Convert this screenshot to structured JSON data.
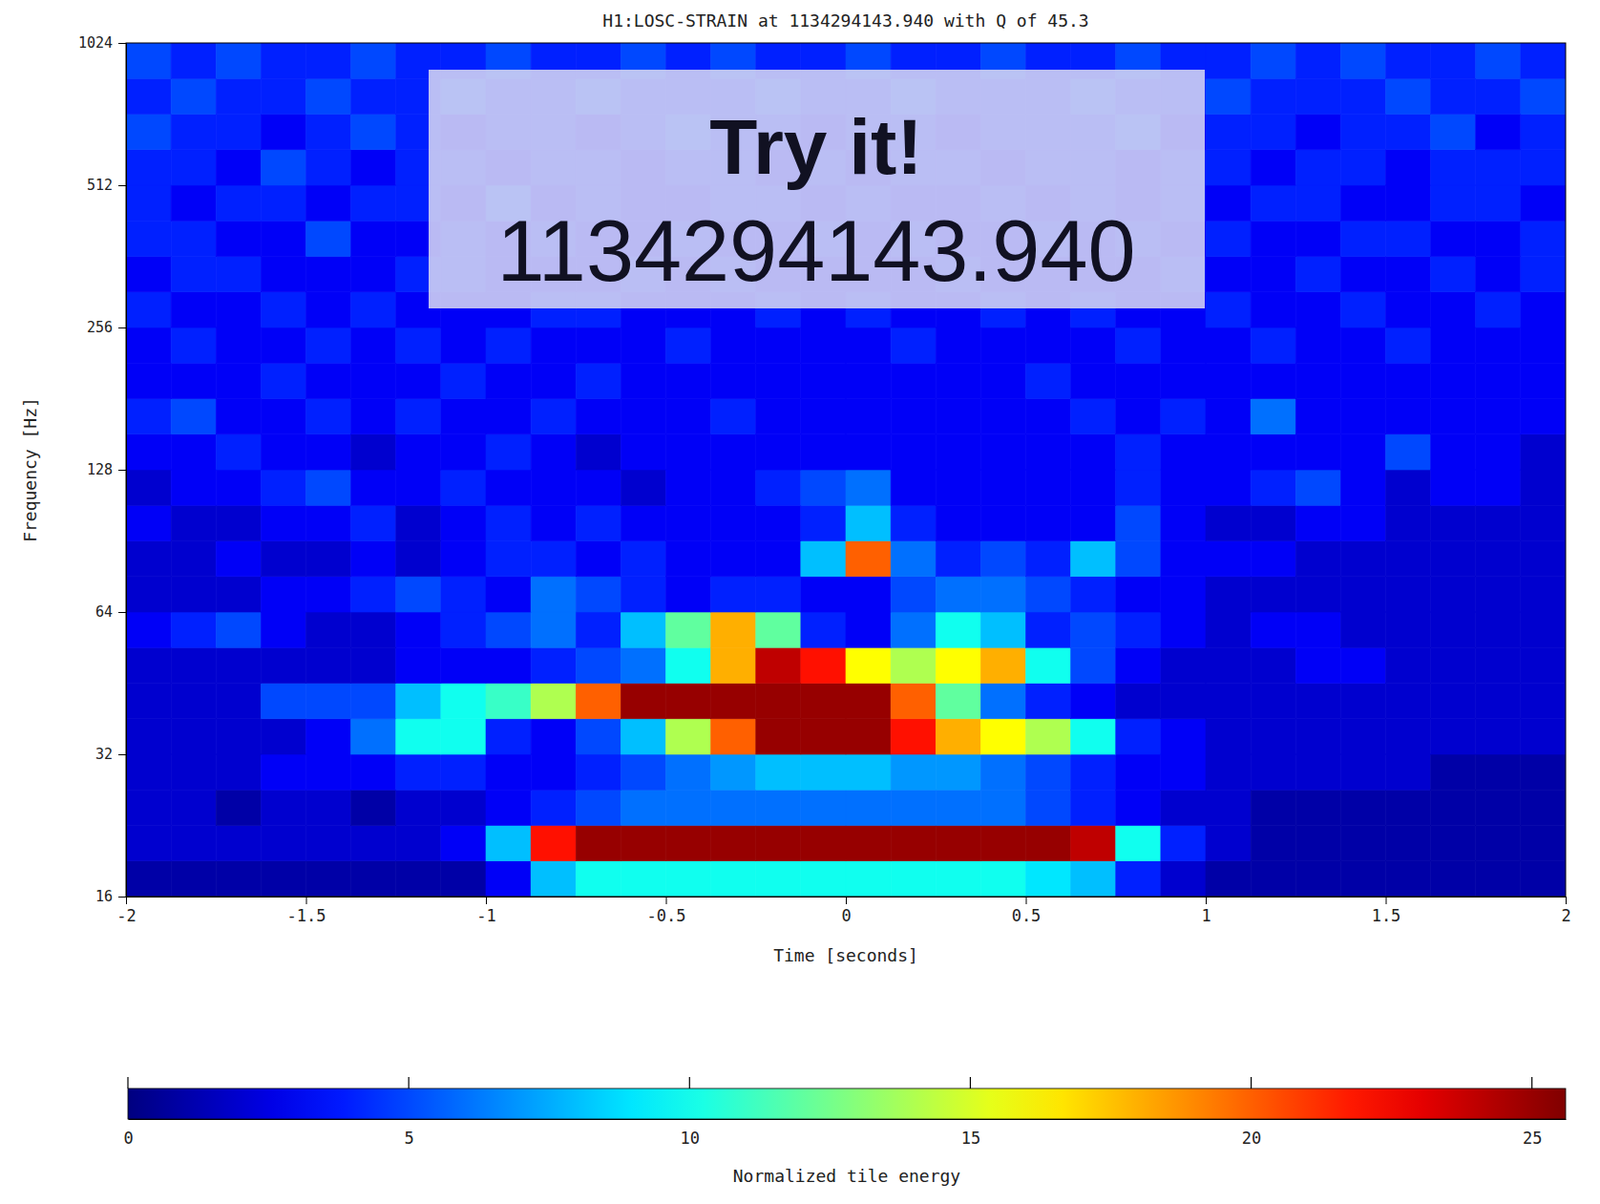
{
  "chart_data": {
    "type": "heatmap",
    "title": "H1:LOSC-STRAIN at 1134294143.940 with Q of 45.3",
    "xlabel": "Time [seconds]",
    "ylabel": "Frequency [Hz]",
    "log": "y",
    "xlim": [
      -2,
      2
    ],
    "xticks": [
      -2,
      -1.5,
      -1,
      -0.5,
      0,
      0.5,
      1,
      1.5,
      2
    ],
    "ylim": [
      16,
      1024
    ],
    "yticks": [
      16,
      32,
      64,
      128,
      256,
      512,
      1024
    ],
    "annotations": [
      "Try it!",
      "1134294143.940"
    ],
    "x_bins": [
      -2,
      -1.875,
      -1.75,
      -1.625,
      -1.5,
      -1.375,
      -1.25,
      -1.125,
      -1,
      -0.875,
      -0.75,
      -0.625,
      -0.5,
      -0.375,
      -0.25,
      -0.125,
      0,
      0.125,
      0.25,
      0.375,
      0.5,
      0.625,
      0.75,
      0.875,
      1,
      1.125,
      1.25,
      1.375,
      1.5,
      1.625,
      1.75,
      1.875,
      2
    ],
    "y_bins": [
      16,
      19.03,
      22.63,
      26.91,
      32,
      38.05,
      45.25,
      53.82,
      64,
      76.11,
      90.51,
      107.63,
      128,
      152.22,
      181.02,
      215.27,
      256,
      304.44,
      362.04,
      430.54,
      512,
      608.87,
      724.08,
      861.08,
      1024
    ],
    "values": [
      [
        1,
        1,
        1,
        1,
        1,
        1,
        1,
        1,
        3,
        8,
        10,
        10,
        10,
        10,
        10,
        10,
        10,
        10,
        10,
        10,
        9,
        8,
        4,
        2,
        1,
        1,
        1,
        1,
        1,
        1,
        1,
        1
      ],
      [
        2,
        2,
        2,
        2,
        2,
        2,
        2,
        3,
        8,
        22,
        25,
        25,
        25,
        25,
        25,
        25,
        25,
        25,
        25,
        25,
        25,
        24,
        10,
        4,
        2,
        1,
        1,
        1,
        1,
        1,
        1,
        1
      ],
      [
        2,
        2,
        1,
        2,
        2,
        1,
        2,
        2,
        3,
        4,
        5,
        6,
        6,
        6,
        6,
        6,
        6,
        6,
        6,
        6,
        5,
        4,
        3,
        2,
        2,
        1,
        1,
        1,
        1,
        1,
        1,
        1
      ],
      [
        2,
        2,
        2,
        3,
        3,
        3,
        4,
        4,
        3,
        3,
        4,
        5,
        6,
        7,
        8,
        8,
        8,
        7,
        7,
        6,
        5,
        4,
        3,
        3,
        2,
        2,
        2,
        2,
        2,
        1,
        1,
        1
      ],
      [
        2,
        2,
        2,
        2,
        3,
        6,
        10,
        10,
        4,
        3,
        5,
        8,
        14,
        20,
        25,
        25,
        25,
        22,
        18,
        16,
        14,
        10,
        4,
        3,
        2,
        2,
        2,
        2,
        2,
        2,
        2,
        2
      ],
      [
        2,
        2,
        2,
        5,
        5,
        5,
        8,
        10,
        11,
        14,
        20,
        25,
        25,
        25,
        25,
        25,
        25,
        20,
        12,
        6,
        4,
        3,
        2,
        2,
        2,
        2,
        2,
        2,
        2,
        2,
        2,
        2
      ],
      [
        2,
        2,
        2,
        2,
        2,
        2,
        3,
        3,
        3,
        4,
        5,
        6,
        10,
        18,
        24,
        22,
        16,
        14,
        16,
        18,
        10,
        5,
        3,
        2,
        2,
        2,
        3,
        3,
        2,
        2,
        2,
        2
      ],
      [
        3,
        4,
        5,
        3,
        2,
        2,
        3,
        4,
        5,
        6,
        4,
        8,
        12,
        18,
        12,
        4,
        3,
        6,
        10,
        8,
        4,
        5,
        4,
        3,
        2,
        3,
        3,
        2,
        2,
        2,
        2,
        2
      ],
      [
        2,
        2,
        2,
        3,
        3,
        4,
        5,
        4,
        3,
        6,
        5,
        4,
        3,
        4,
        4,
        3,
        3,
        5,
        6,
        6,
        5,
        4,
        3,
        3,
        2,
        2,
        2,
        2,
        2,
        2,
        2,
        2
      ],
      [
        2,
        2,
        3,
        2,
        2,
        3,
        2,
        3,
        4,
        4,
        3,
        4,
        3,
        3,
        3,
        8,
        20,
        6,
        4,
        5,
        4,
        8,
        5,
        3,
        3,
        3,
        2,
        2,
        2,
        2,
        2,
        2
      ],
      [
        3,
        2,
        2,
        3,
        3,
        4,
        2,
        3,
        4,
        3,
        4,
        3,
        3,
        3,
        3,
        4,
        8,
        4,
        3,
        3,
        3,
        3,
        5,
        3,
        2,
        2,
        3,
        3,
        2,
        2,
        2,
        2
      ],
      [
        2,
        3,
        3,
        4,
        5,
        3,
        3,
        4,
        3,
        3,
        3,
        2,
        3,
        3,
        4,
        5,
        6,
        3,
        3,
        3,
        3,
        3,
        4,
        3,
        3,
        4,
        5,
        3,
        2,
        3,
        3,
        2
      ],
      [
        3,
        3,
        4,
        3,
        3,
        2,
        3,
        3,
        4,
        3,
        2,
        3,
        3,
        3,
        3,
        3,
        3,
        3,
        3,
        3,
        3,
        3,
        4,
        3,
        3,
        3,
        3,
        3,
        5,
        3,
        3,
        2
      ],
      [
        4,
        5,
        3,
        3,
        4,
        3,
        4,
        3,
        3,
        4,
        3,
        3,
        3,
        4,
        3,
        3,
        3,
        3,
        3,
        3,
        3,
        4,
        3,
        4,
        3,
        6,
        3,
        3,
        3,
        3,
        3,
        3
      ],
      [
        3,
        3,
        3,
        4,
        3,
        3,
        3,
        4,
        3,
        3,
        4,
        3,
        3,
        3,
        3,
        3,
        3,
        3,
        3,
        3,
        4,
        3,
        3,
        3,
        3,
        3,
        3,
        3,
        3,
        3,
        3,
        3
      ],
      [
        3,
        4,
        3,
        3,
        4,
        3,
        4,
        3,
        4,
        3,
        3,
        3,
        4,
        3,
        3,
        3,
        3,
        4,
        3,
        3,
        3,
        3,
        4,
        3,
        3,
        4,
        3,
        3,
        4,
        3,
        3,
        3
      ],
      [
        4,
        3,
        3,
        4,
        3,
        4,
        3,
        3,
        3,
        4,
        4,
        3,
        3,
        3,
        4,
        3,
        4,
        3,
        3,
        4,
        3,
        4,
        3,
        3,
        4,
        3,
        3,
        4,
        3,
        3,
        4,
        3
      ],
      [
        3,
        4,
        4,
        3,
        3,
        3,
        4,
        4,
        3,
        3,
        3,
        4,
        3,
        4,
        3,
        3,
        3,
        3,
        4,
        3,
        3,
        3,
        3,
        4,
        3,
        3,
        4,
        3,
        3,
        4,
        3,
        4
      ],
      [
        4,
        4,
        3,
        3,
        5,
        3,
        3,
        4,
        3,
        4,
        3,
        3,
        4,
        3,
        3,
        4,
        3,
        4,
        3,
        3,
        4,
        3,
        4,
        3,
        4,
        3,
        3,
        4,
        4,
        3,
        3,
        4
      ],
      [
        4,
        3,
        4,
        4,
        3,
        4,
        4,
        3,
        5,
        3,
        4,
        3,
        3,
        4,
        4,
        3,
        4,
        3,
        3,
        4,
        3,
        4,
        3,
        4,
        3,
        4,
        4,
        3,
        3,
        4,
        4,
        3
      ],
      [
        4,
        4,
        3,
        5,
        4,
        3,
        4,
        4,
        3,
        4,
        4,
        3,
        4,
        4,
        3,
        4,
        3,
        4,
        4,
        3,
        4,
        4,
        3,
        4,
        4,
        3,
        4,
        4,
        3,
        4,
        4,
        4
      ],
      [
        5,
        4,
        4,
        3,
        4,
        5,
        4,
        3,
        4,
        4,
        3,
        4,
        5,
        4,
        4,
        3,
        4,
        4,
        3,
        4,
        4,
        4,
        5,
        3,
        4,
        4,
        3,
        4,
        4,
        5,
        3,
        4
      ],
      [
        4,
        5,
        4,
        4,
        5,
        4,
        4,
        5,
        4,
        4,
        5,
        4,
        4,
        4,
        5,
        4,
        4,
        5,
        4,
        4,
        4,
        5,
        4,
        4,
        5,
        4,
        4,
        4,
        5,
        4,
        4,
        5
      ],
      [
        5,
        4,
        5,
        4,
        4,
        5,
        4,
        4,
        5,
        4,
        4,
        5,
        4,
        5,
        4,
        4,
        5,
        4,
        4,
        5,
        4,
        4,
        5,
        4,
        4,
        5,
        4,
        5,
        4,
        4,
        5,
        4
      ]
    ],
    "colorbar": {
      "label": "Normalized tile energy",
      "range": [
        0,
        25.6
      ],
      "ticks": [
        0,
        5,
        10,
        15,
        20,
        25
      ]
    }
  }
}
